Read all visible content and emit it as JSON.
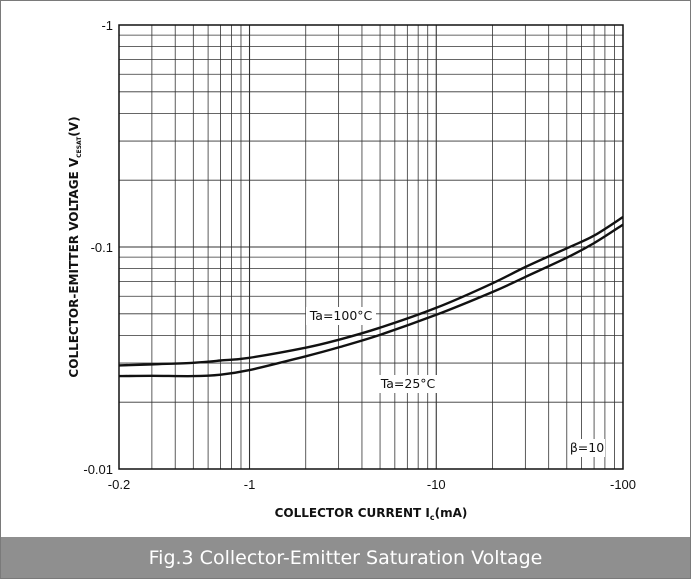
{
  "caption": "Fig.3 Collector-Emitter Saturation Voltage",
  "chart_data": {
    "type": "line",
    "title": "",
    "xlabel": {
      "main": "COLLECTOR CURRENT  I",
      "sub": "c",
      "unit": "(mA)"
    },
    "ylabel": {
      "main": "COLLECTOR-EMITTER VOLTAGE  V",
      "sub": "CESAT",
      "unit": "(V)"
    },
    "xscale": "log",
    "yscale": "log",
    "xlim": [
      0.2,
      100
    ],
    "ylim": [
      0.01,
      1
    ],
    "x_ticks": [
      {
        "value": 0.2,
        "label": "-0.2"
      },
      {
        "value": 1,
        "label": "-1"
      },
      {
        "value": 10,
        "label": "-10"
      },
      {
        "value": 100,
        "label": "-100"
      }
    ],
    "y_ticks": [
      {
        "value": 0.01,
        "label": "-0.01"
      },
      {
        "value": 0.1,
        "label": "-0.1"
      },
      {
        "value": 1,
        "label": "-1"
      }
    ],
    "grid": true,
    "colors": {
      "line": "#111111",
      "grid": "#333333",
      "caption_bg": "#8f8f8f"
    },
    "series": [
      {
        "name": "Ta=100°C",
        "x": [
          0.2,
          0.3,
          0.5,
          0.7,
          1,
          2,
          3,
          5,
          10,
          20,
          30,
          50,
          70,
          100
        ],
        "y": [
          0.0293,
          0.0296,
          0.0301,
          0.0308,
          0.0317,
          0.0352,
          0.0382,
          0.0433,
          0.0532,
          0.0686,
          0.0813,
          0.0987,
          0.1125,
          0.1365
        ]
      },
      {
        "name": "Ta=25°C",
        "x": [
          0.2,
          0.3,
          0.5,
          0.7,
          1,
          2,
          3,
          5,
          10,
          20,
          30,
          50,
          70,
          100
        ],
        "y": [
          0.0262,
          0.0263,
          0.0262,
          0.0266,
          0.0279,
          0.0322,
          0.0353,
          0.0402,
          0.0495,
          0.0627,
          0.0733,
          0.0895,
          0.1041,
          0.1261
        ]
      }
    ],
    "annotations": [
      "Ta=100°C",
      "Ta=25°C",
      "β=10"
    ]
  }
}
